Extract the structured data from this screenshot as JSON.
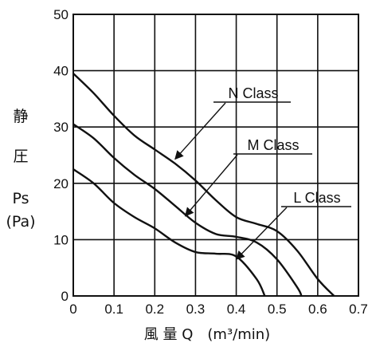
{
  "chart_data": {
    "type": "line",
    "xlabel": "風 量 Q　(m³/min)",
    "ylabel_lines": [
      "静",
      "圧",
      "Ps",
      "(Pa)"
    ],
    "xlim": [
      0,
      0.7
    ],
    "ylim": [
      0,
      50
    ],
    "x_ticks": [
      "0",
      "0.1",
      "0.2",
      "0.3",
      "0.4",
      "0.5",
      "0.6",
      "0.7"
    ],
    "y_ticks": [
      "0",
      "10",
      "20",
      "30",
      "40",
      "50"
    ],
    "grid": true,
    "series": [
      {
        "name": "N Class",
        "points": [
          [
            0,
            39.5
          ],
          [
            0.05,
            36
          ],
          [
            0.1,
            32
          ],
          [
            0.15,
            28.5
          ],
          [
            0.2,
            26
          ],
          [
            0.25,
            23.5
          ],
          [
            0.3,
            20.5
          ],
          [
            0.35,
            17
          ],
          [
            0.4,
            14
          ],
          [
            0.45,
            12.8
          ],
          [
            0.5,
            11.5
          ],
          [
            0.55,
            8
          ],
          [
            0.6,
            3
          ],
          [
            0.64,
            0
          ]
        ]
      },
      {
        "name": "M Class",
        "points": [
          [
            0,
            30.5
          ],
          [
            0.05,
            28
          ],
          [
            0.1,
            24.5
          ],
          [
            0.15,
            21.5
          ],
          [
            0.2,
            19
          ],
          [
            0.25,
            16
          ],
          [
            0.3,
            13
          ],
          [
            0.35,
            11
          ],
          [
            0.4,
            10.5
          ],
          [
            0.45,
            9.5
          ],
          [
            0.5,
            6.5
          ],
          [
            0.55,
            1.5
          ],
          [
            0.56,
            0
          ]
        ]
      },
      {
        "name": "L Class",
        "points": [
          [
            0,
            22.5
          ],
          [
            0.05,
            20
          ],
          [
            0.1,
            16.5
          ],
          [
            0.15,
            14
          ],
          [
            0.2,
            12
          ],
          [
            0.25,
            9.5
          ],
          [
            0.3,
            7.8
          ],
          [
            0.35,
            7.5
          ],
          [
            0.4,
            7
          ],
          [
            0.45,
            3
          ],
          [
            0.47,
            0
          ]
        ]
      }
    ],
    "annotations": [
      {
        "label": "N Class",
        "points_to": [
          0.25,
          24.3
        ]
      },
      {
        "label": "M Class",
        "points_to": [
          0.275,
          14.2
        ]
      },
      {
        "label": "L Class",
        "points_to": [
          0.4,
          6.5
        ]
      }
    ]
  }
}
